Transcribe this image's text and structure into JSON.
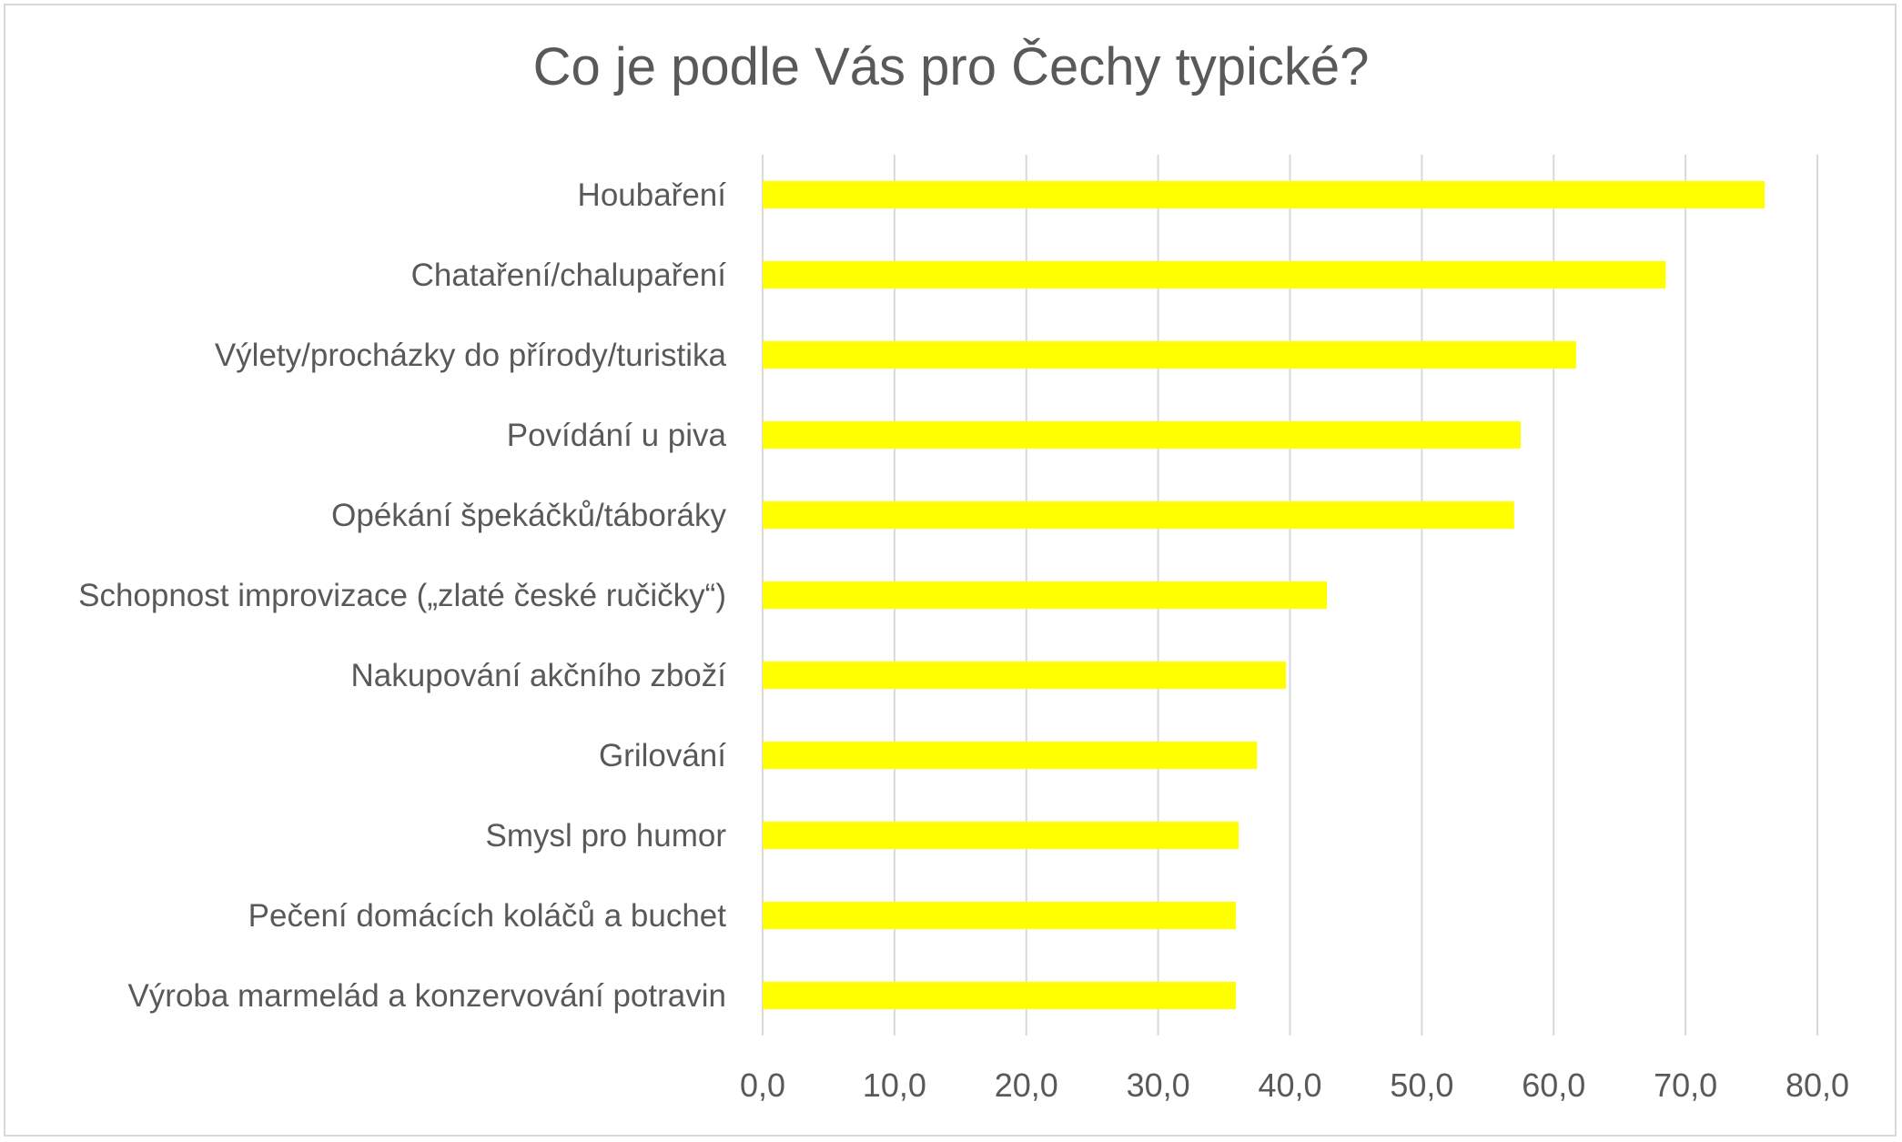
{
  "chart_data": {
    "type": "bar",
    "orientation": "horizontal",
    "title": "Co je podle Vás pro Čechy typické?",
    "xlabel": "",
    "ylabel": "",
    "categories": [
      "Houbaření",
      "Chataření/chalupaření",
      "Výlety/procházky do přírody/turistika",
      "Povídání u piva",
      "Opékání špekáčků/táboráky",
      "Schopnost improvizace („zlaté české ručičky“)",
      "Nakupování akčního zboží",
      "Grilování",
      "Smysl pro humor",
      "Pečení domácích koláčů a buchet",
      "Výroba marmelád a konzervování potravin"
    ],
    "values": [
      76.0,
      68.5,
      61.7,
      57.5,
      57.0,
      42.8,
      39.7,
      37.5,
      36.1,
      35.9,
      35.9
    ],
    "xlim": [
      0,
      80
    ],
    "tick_values": [
      0,
      10,
      20,
      30,
      40,
      50,
      60,
      70,
      80
    ],
    "tick_labels": [
      "0,0",
      "10,0",
      "20,0",
      "30,0",
      "40,0",
      "50,0",
      "60,0",
      "70,0",
      "80,0"
    ],
    "grid": true,
    "legend": "none",
    "bar_color": "#FFFF00",
    "grid_color": "#d9d9d9",
    "text_color": "#595959"
  }
}
